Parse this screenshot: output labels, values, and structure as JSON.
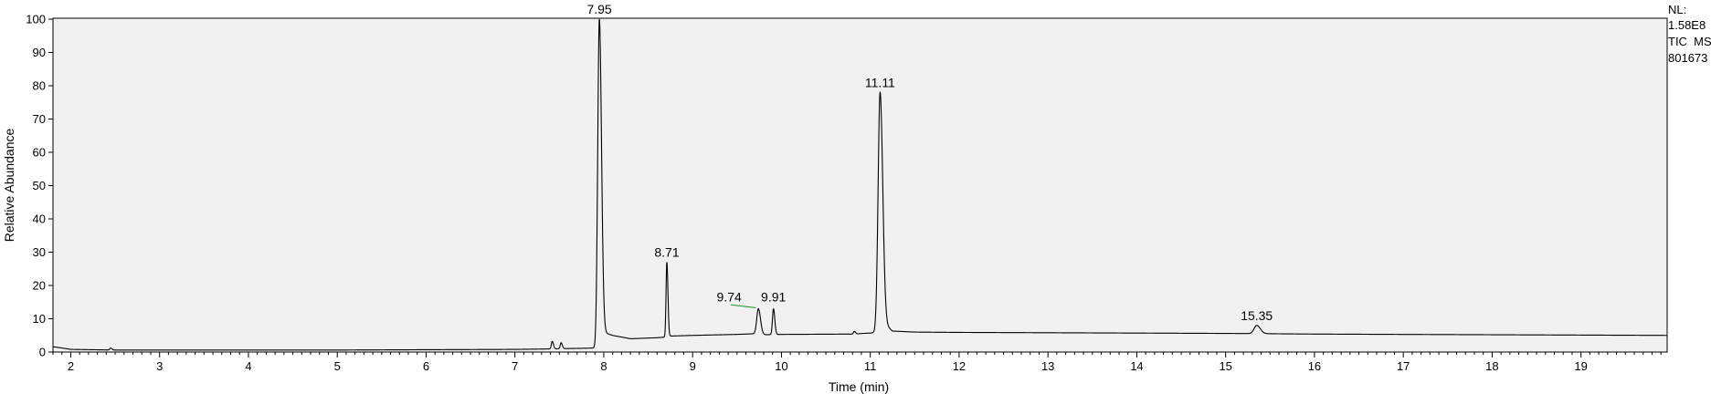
{
  "info": {
    "nl_label": "NL:",
    "nl_value": "1.58E8",
    "trace_label": "TIC  MS",
    "file_id": "801673"
  },
  "colors": {
    "plot_background": "#f1f1f1",
    "trace": "#000000",
    "baseline_marker": "#2e9e2e"
  },
  "chart_data": {
    "type": "line",
    "title": "",
    "xlabel": "Time (min)",
    "ylabel": "Relative Abundance",
    "xlim": [
      1.8,
      19.97
    ],
    "ylim": [
      0,
      100
    ],
    "grid": false,
    "x_ticks": [
      2,
      3,
      4,
      5,
      6,
      7,
      8,
      9,
      10,
      11,
      12,
      13,
      14,
      15,
      16,
      17,
      18,
      19
    ],
    "y_ticks": [
      0,
      10,
      20,
      30,
      40,
      50,
      60,
      70,
      80,
      90,
      100
    ],
    "peaks": [
      {
        "label": "7.95",
        "rt": 7.95,
        "abundance": 100,
        "width": 0.018
      },
      {
        "label": "8.71",
        "rt": 8.71,
        "abundance": 27,
        "width": 0.009
      },
      {
        "label": "9.74",
        "rt": 9.74,
        "abundance": 13,
        "width": 0.018
      },
      {
        "label": "9.91",
        "rt": 9.91,
        "abundance": 13,
        "width": 0.011
      },
      {
        "label": "11.11",
        "rt": 11.11,
        "abundance": 78,
        "width": 0.022
      },
      {
        "label": "15.35",
        "rt": 15.35,
        "abundance": 8,
        "width": 0.03
      }
    ],
    "baseline": [
      [
        1.8,
        1.6
      ],
      [
        1.88,
        1.3
      ],
      [
        2.0,
        0.8
      ],
      [
        2.5,
        0.6
      ],
      [
        3.0,
        0.6
      ],
      [
        5.0,
        0.6
      ],
      [
        6.0,
        0.7
      ],
      [
        7.0,
        0.8
      ],
      [
        7.3,
        0.9
      ],
      [
        7.9,
        1.2
      ],
      [
        7.99,
        6.0
      ],
      [
        8.1,
        5.0
      ],
      [
        8.3,
        4.0
      ],
      [
        8.6,
        4.3
      ],
      [
        8.7,
        4.5
      ],
      [
        8.75,
        4.8
      ],
      [
        9.0,
        5.0
      ],
      [
        9.5,
        5.3
      ],
      [
        9.7,
        5.5
      ],
      [
        9.75,
        5.4
      ],
      [
        9.8,
        5.2
      ],
      [
        10.0,
        5.3
      ],
      [
        10.8,
        5.4
      ],
      [
        11.05,
        5.8
      ],
      [
        11.14,
        9.0
      ],
      [
        11.25,
        6.3
      ],
      [
        11.5,
        6.0
      ],
      [
        12.0,
        5.9
      ],
      [
        13.0,
        5.8
      ],
      [
        14.0,
        5.7
      ],
      [
        15.0,
        5.6
      ],
      [
        15.5,
        5.5
      ],
      [
        16.0,
        5.4
      ],
      [
        17.0,
        5.3
      ],
      [
        18.0,
        5.2
      ],
      [
        19.0,
        5.1
      ],
      [
        19.97,
        5.0
      ]
    ],
    "minor_bumps": [
      {
        "rt": 2.45,
        "abundance": 1.2,
        "width": 0.01
      },
      {
        "rt": 7.42,
        "abundance": 3.2,
        "width": 0.01
      },
      {
        "rt": 7.52,
        "abundance": 2.8,
        "width": 0.01
      },
      {
        "rt": 10.82,
        "abundance": 6.2,
        "width": 0.01
      }
    ]
  }
}
